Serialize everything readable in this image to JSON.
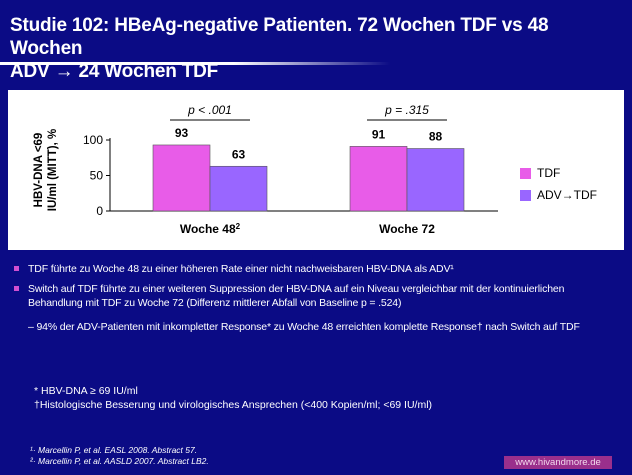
{
  "title_line1": "Studie 102: HBeAg-negative  Patienten. 72 Wochen TDF vs 48 Wochen",
  "title_line2": "ADV → 24 Wochen TDF",
  "chart_data": {
    "type": "bar",
    "categories": [
      "Woche 48",
      "Woche 72"
    ],
    "category_superscripts": [
      "2",
      ""
    ],
    "series": [
      {
        "name": "TDF",
        "values": [
          93,
          91
        ],
        "color": "#e85ce8"
      },
      {
        "name": "ADV→TDF",
        "values": [
          63,
          88
        ],
        "color": "#9966ff"
      }
    ],
    "data_labels": [
      [
        "93",
        "63"
      ],
      [
        "91",
        "88"
      ]
    ],
    "ylabel_line1": "HBV-DNA <69",
    "ylabel_line2": "IU/ml (MITT), %",
    "yticks": [
      "0",
      "50",
      "100"
    ],
    "ylim": [
      0,
      100
    ],
    "p_values": [
      "p < .001",
      "p = .315"
    ],
    "legend_position": "right",
    "grid": false
  },
  "bullets": [
    "TDF führte zu Woche 48 zu einer höheren Rate einer nicht nachweisbaren HBV-DNA als ADV¹",
    "Switch auf  TDF führte zu einer weiteren Suppression der HBV-DNA auf ein Niveau vergleichbar mit der kontinuierlichen Behandlung mit TDF zu Woche 72 (Differenz mittlerer Abfall von Baseline   p = .524)"
  ],
  "sub_bullet": "– 94% der ADV-Patienten mit inkompletter Response* zu Woche 48 erreichten komplette Response† nach Switch auf TDF",
  "notes": [
    "* HBV-DNA ≥ 69 IU/ml",
    "†Histologische Besserung und virologisches Ansprechen (<400 Kopien/ml; <69 IU/ml)"
  ],
  "refs": [
    "¹· Marcellin P, et al. EASL 2008. Abstract 57.",
    "²· Marcellin P, et al. AASLD 2007. Abstract LB2."
  ],
  "url": "www.hivandmore.de"
}
